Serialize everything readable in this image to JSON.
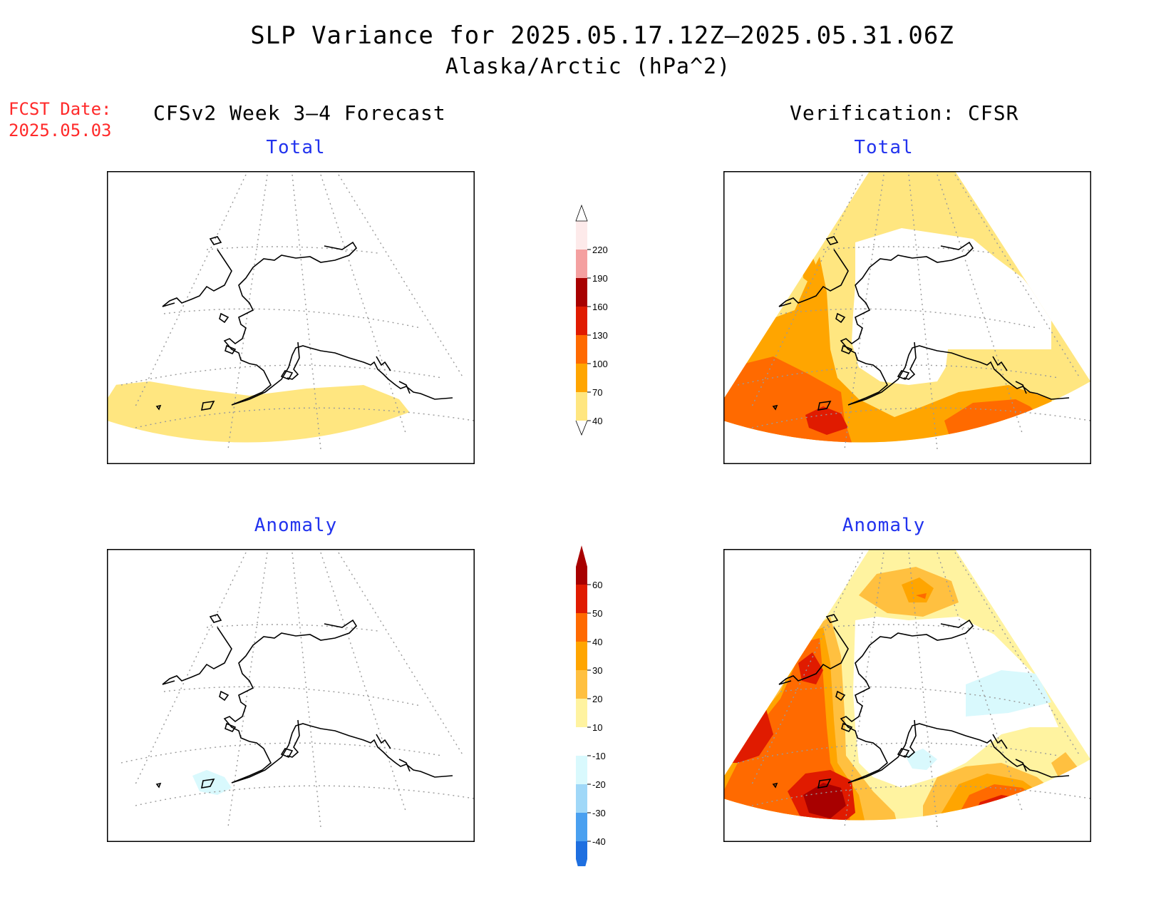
{
  "title": "SLP Variance for 2025.05.17.12Z–2025.05.31.06Z",
  "subtitle": "Alaska/Arctic (hPa^2)",
  "fcst_label": "FCST Date:",
  "fcst_date": "2025.05.03",
  "left_column": "CFSv2 Week 3–4 Forecast",
  "right_column": "Verification: CFSR",
  "panels": {
    "fc_total": "Total",
    "vf_total": "Total",
    "fc_anom": "Anomaly",
    "vf_anom": "Anomaly"
  },
  "colorbar_total": {
    "levels": [
      "220",
      "190",
      "160",
      "130",
      "100",
      "70",
      "40"
    ],
    "colors": [
      "#fdeaea",
      "#f4a0a0",
      "#a80000",
      "#e01b00",
      "#ff6a00",
      "#ffa500",
      "#ffe680"
    ]
  },
  "colorbar_anomaly": {
    "levels": [
      "60",
      "50",
      "40",
      "30",
      "20",
      "10",
      "-10",
      "-20",
      "-30",
      "-40"
    ],
    "colors": [
      "#a80000",
      "#e01b00",
      "#ff6a00",
      "#ffa500",
      "#ffc040",
      "#fff3a0",
      "#ffffff",
      "#d9f9fd",
      "#a0d8f8",
      "#4aa0f0",
      "#1e6fe0"
    ]
  }
}
